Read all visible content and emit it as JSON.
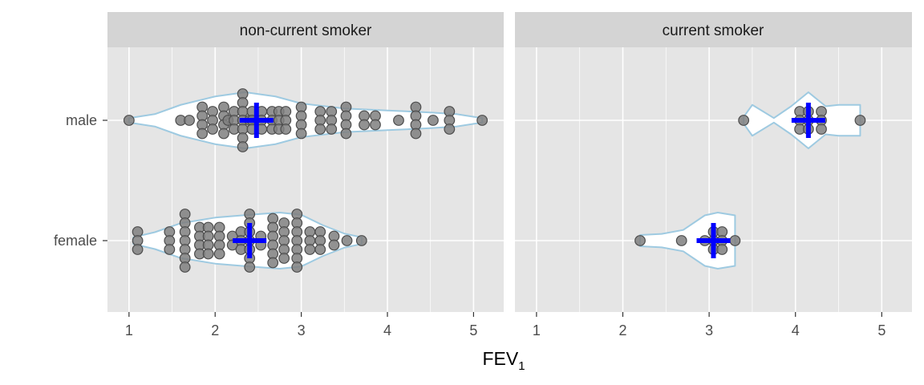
{
  "chart_data": {
    "type": "violin",
    "xlabel": "FEV",
    "xlabel_subscript": "1",
    "xticks": [
      "1",
      "2",
      "3",
      "4",
      "5"
    ],
    "xlim": [
      0.75,
      5.35
    ],
    "categories": [
      "male",
      "female"
    ],
    "colors": {
      "panel_bg": "#e5e5e5",
      "strip_bg": "#d4d4d4",
      "grid": "#ffffff",
      "violin_outline": "#9ecae1",
      "violin_fill": "#ffffff",
      "point_fill": "#7f7f7f",
      "point_stroke": "#4d4d4d",
      "mean_marker": "#0000ff"
    },
    "panels": [
      {
        "title": "non-current smoker",
        "groups": [
          {
            "category": "male",
            "mean": 2.48,
            "points": [
              1.0,
              1.6,
              1.7,
              1.85,
              1.85,
              1.85,
              1.85,
              1.97,
              1.97,
              1.97,
              2.1,
              2.1,
              2.1,
              2.1,
              2.15,
              2.22,
              2.22,
              2.22,
              2.32,
              2.32,
              2.32,
              2.32,
              2.32,
              2.32,
              2.32,
              2.4,
              2.43,
              2.43,
              2.43,
              2.54,
              2.54,
              2.54,
              2.66,
              2.66,
              2.66,
              2.74,
              2.74,
              2.74,
              2.82,
              2.82,
              2.82,
              3.0,
              3.0,
              3.0,
              3.0,
              3.22,
              3.22,
              3.22,
              3.35,
              3.35,
              3.35,
              3.52,
              3.52,
              3.52,
              3.52,
              3.73,
              3.73,
              3.86,
              3.86,
              4.13,
              4.33,
              4.33,
              4.33,
              4.33,
              4.53,
              4.72,
              4.72,
              4.72,
              5.1
            ],
            "violin": [
              [
                1.0,
                0.08
              ],
              [
                1.3,
                0.22
              ],
              [
                1.6,
                0.55
              ],
              [
                2.0,
                0.85
              ],
              [
                2.35,
                1.0
              ],
              [
                2.7,
                0.85
              ],
              [
                3.0,
                0.6
              ],
              [
                3.5,
                0.42
              ],
              [
                4.0,
                0.35
              ],
              [
                4.5,
                0.28
              ],
              [
                4.8,
                0.22
              ],
              [
                5.1,
                0.08
              ]
            ]
          },
          {
            "category": "female",
            "mean": 2.4,
            "points": [
              1.1,
              1.1,
              1.1,
              1.47,
              1.47,
              1.47,
              1.65,
              1.65,
              1.65,
              1.65,
              1.65,
              1.65,
              1.65,
              1.82,
              1.82,
              1.82,
              1.82,
              1.92,
              1.92,
              1.92,
              1.92,
              2.05,
              2.05,
              2.05,
              2.05,
              2.2,
              2.2,
              2.3,
              2.3,
              2.3,
              2.4,
              2.4,
              2.4,
              2.4,
              2.4,
              2.4,
              2.4,
              2.53,
              2.53,
              2.67,
              2.67,
              2.67,
              2.67,
              2.67,
              2.67,
              2.8,
              2.8,
              2.8,
              2.8,
              2.8,
              2.95,
              2.95,
              2.95,
              2.95,
              2.95,
              2.95,
              2.95,
              3.1,
              3.1,
              3.1,
              3.22,
              3.22,
              3.22,
              3.38,
              3.38,
              3.53,
              3.7
            ],
            "violin": [
              [
                1.05,
                0.12
              ],
              [
                1.3,
                0.3
              ],
              [
                1.6,
                0.62
              ],
              [
                2.0,
                0.82
              ],
              [
                2.4,
                0.92
              ],
              [
                2.75,
                1.0
              ],
              [
                3.0,
                0.92
              ],
              [
                3.25,
                0.55
              ],
              [
                3.5,
                0.25
              ],
              [
                3.7,
                0.12
              ]
            ]
          }
        ]
      },
      {
        "title": "current smoker",
        "groups": [
          {
            "category": "male",
            "mean": 4.15,
            "points": [
              3.4,
              4.05,
              4.05,
              4.05,
              4.15,
              4.15,
              4.15,
              4.3,
              4.3,
              4.3,
              4.75
            ],
            "violin": [
              [
                3.4,
                0.12
              ],
              [
                3.5,
                0.55
              ],
              [
                3.75,
                0.08
              ],
              [
                3.95,
                0.5
              ],
              [
                4.15,
                1.0
              ],
              [
                4.35,
                0.5
              ],
              [
                4.5,
                0.55
              ],
              [
                4.75,
                0.55
              ]
            ]
          },
          {
            "category": "female",
            "mean": 3.05,
            "points": [
              2.2,
              2.68,
              2.95,
              3.05,
              3.05,
              3.05,
              3.15,
              3.15,
              3.15,
              3.3
            ],
            "violin": [
              [
                2.2,
                0.2
              ],
              [
                2.45,
                0.24
              ],
              [
                2.7,
                0.38
              ],
              [
                2.95,
                0.9
              ],
              [
                3.1,
                1.0
              ],
              [
                3.3,
                0.9
              ]
            ]
          }
        ]
      }
    ]
  }
}
